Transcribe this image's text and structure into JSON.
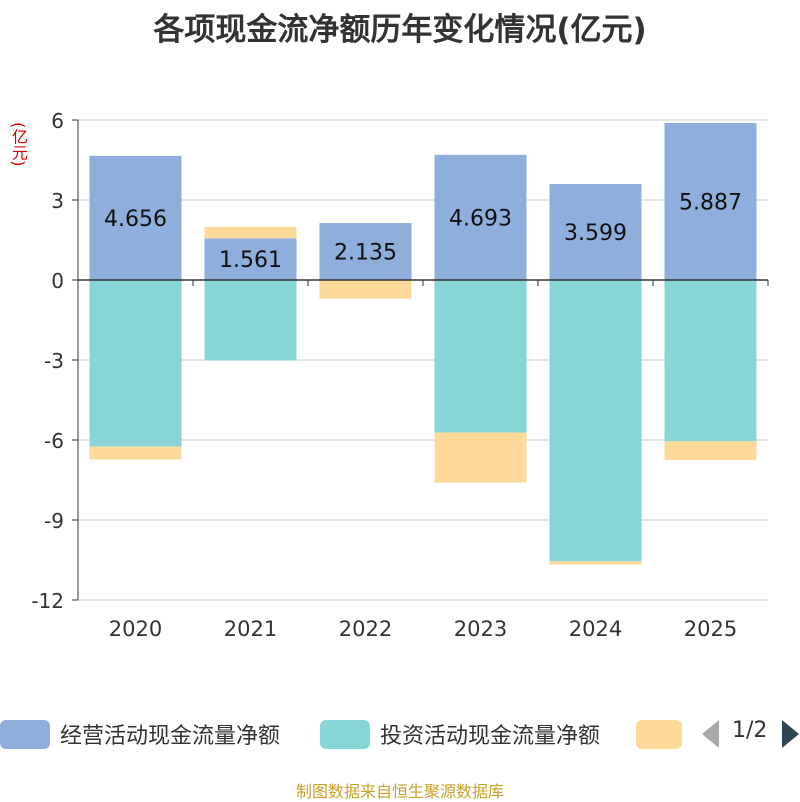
{
  "chart_data": {
    "type": "bar",
    "stacked": true,
    "title": "各项现金流净额历年变化情况(亿元)",
    "ylabel": "(亿元)",
    "categories": [
      "2020",
      "2021",
      "2022",
      "2023",
      "2024",
      "2025"
    ],
    "ylim": [
      -12,
      6
    ],
    "yticks": [
      6,
      3,
      0,
      -3,
      -6,
      -9,
      -12
    ],
    "grid": true,
    "series": [
      {
        "name": "经营活动现金流量净额",
        "color": "#8eaedb",
        "values": [
          4.656,
          1.561,
          2.135,
          4.693,
          3.599,
          5.887
        ],
        "labels": [
          "4.656",
          "1.561",
          "2.135",
          "4.693",
          "3.599",
          "5.887"
        ]
      },
      {
        "name": "投资活动现金流量净额",
        "color": "#88d5d7",
        "values": [
          -6.25,
          -3.02,
          0,
          -5.72,
          -10.55,
          -6.05
        ]
      },
      {
        "name": "",
        "color": "#fdd99a",
        "values": [
          -0.48,
          0.43,
          -0.7,
          -1.88,
          -0.12,
          -0.7
        ]
      }
    ],
    "legend": {
      "position": "bottom",
      "page": "1/2"
    }
  },
  "source": "制图数据来自恒生聚源数据库"
}
